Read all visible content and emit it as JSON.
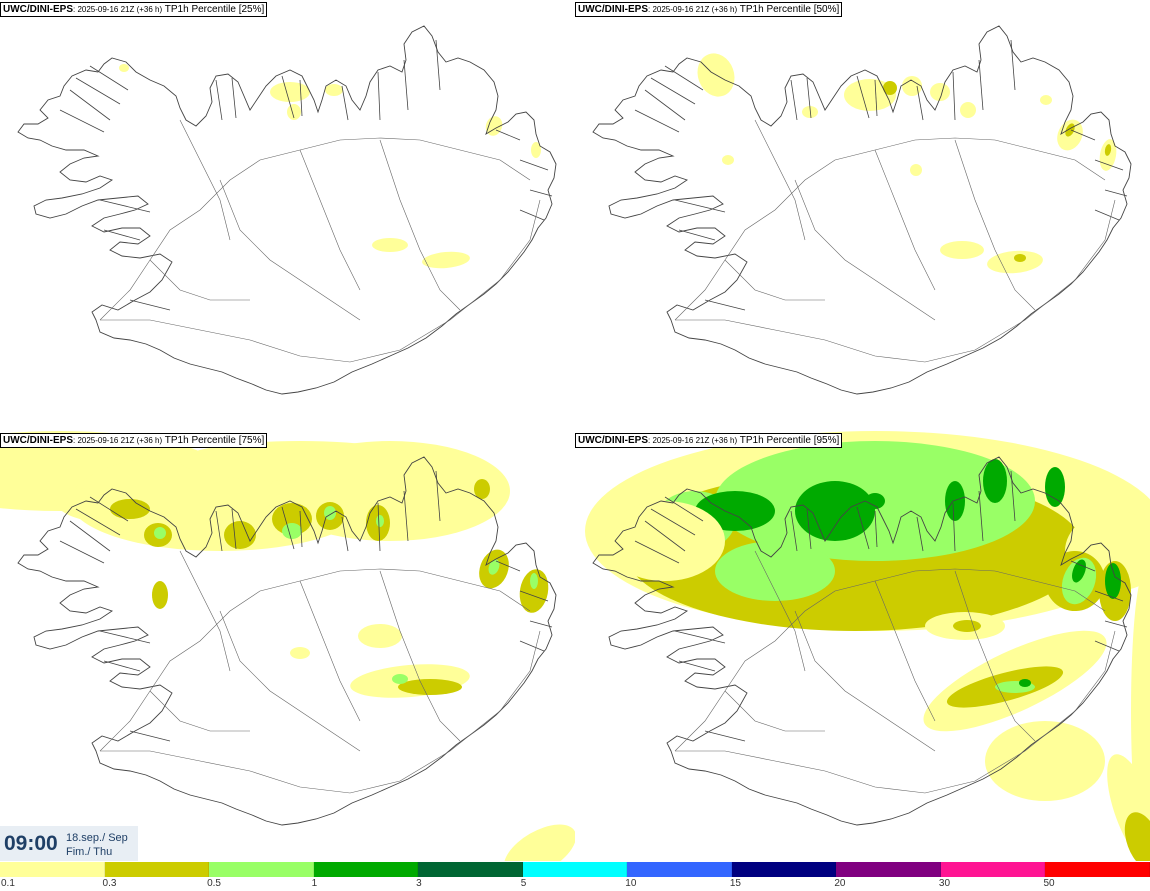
{
  "panels": [
    {
      "source": "UWC/DINI-EPS",
      "run": ": 2025-09-16 21Z (+36 h)",
      "field": " TP1h Percentile [25%]"
    },
    {
      "source": "UWC/DINI-EPS",
      "run": ": 2025-09-16 21Z (+36 h)",
      "field": " TP1h Percentile [50%]"
    },
    {
      "source": "UWC/DINI-EPS",
      "run": ": 2025-09-16 21Z (+36 h)",
      "field": " TP1h Percentile [75%]"
    },
    {
      "source": "UWC/DINI-EPS",
      "run": ": 2025-09-16 21Z (+36 h)",
      "field": " TP1h Percentile [95%]"
    }
  ],
  "valid": {
    "time": "09:00",
    "date_line1": "18.sep./ Sep",
    "date_line2": "Fim./ Thu"
  },
  "legend": {
    "labels": [
      "0.1",
      "0.3",
      "0.5",
      "1",
      "3",
      "5",
      "10",
      "15",
      "20",
      "30",
      "50"
    ],
    "colors": [
      "#ffff99",
      "#cccc00",
      "#99ff66",
      "#00aa00",
      "#006633",
      "#00ffff",
      "#3366ff",
      "#000080",
      "#800080",
      "#ff1493",
      "#ff0000"
    ]
  },
  "precip_colors": {
    "light": "#ffff99",
    "medium": "#cccc00",
    "heavy": "#99ff66",
    "very_heavy": "#00aa00"
  }
}
